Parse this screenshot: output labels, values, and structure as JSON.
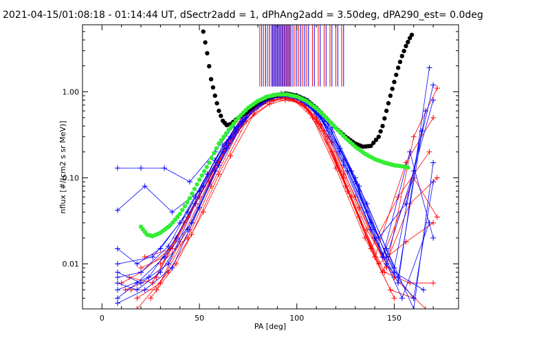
{
  "chart_data": {
    "type": "line",
    "title": "2021-04-15/01:08:18 - 01:14:44 UT, dSectr2add = 1, dPhAng2add = 3.50deg, dPA290_est=    0.0deg",
    "xlabel": "PA [deg]",
    "ylabel": "nflux [#/(cm2 s sr MeV)]",
    "xlim": [
      -10,
      183
    ],
    "ylim": [
      0.003,
      6
    ],
    "yscale": "log",
    "x_ticks": [
      0,
      50,
      100,
      150
    ],
    "x_tick_labels": [
      "0",
      "50",
      "100",
      "150"
    ],
    "y_ticks": [
      0.01,
      0.1,
      1.0
    ],
    "y_tick_labels": [
      "0.01",
      "0.10",
      "1.00"
    ],
    "legend": "none",
    "colors": {
      "red": "#ff0000",
      "blue": "#0000ff",
      "black": "#000000",
      "green": "#33ee33"
    },
    "series": [
      {
        "color": "black",
        "marker": "dot",
        "x": [
          52,
          54,
          56,
          58,
          60,
          62,
          64,
          66,
          70,
          75,
          80,
          85,
          90,
          95,
          100,
          105,
          110,
          115,
          120,
          125,
          130,
          134,
          138,
          142,
          144,
          146,
          148,
          150,
          152,
          154,
          156,
          158,
          160
        ],
        "y": [
          5.0,
          2.8,
          1.4,
          0.9,
          0.6,
          0.46,
          0.41,
          0.42,
          0.5,
          0.6,
          0.75,
          0.86,
          0.92,
          0.95,
          0.9,
          0.8,
          0.65,
          0.5,
          0.38,
          0.3,
          0.25,
          0.23,
          0.235,
          0.3,
          0.4,
          0.6,
          0.9,
          1.3,
          1.9,
          2.6,
          3.4,
          4.2,
          5.0
        ]
      },
      {
        "color": "green",
        "marker": "dot",
        "x": [
          20,
          23,
          26,
          30,
          35,
          40,
          45,
          50,
          55,
          60,
          65,
          70,
          75,
          80,
          85,
          90,
          95,
          100,
          105,
          110,
          115,
          120,
          125,
          130,
          135,
          140,
          145,
          150,
          155,
          158
        ],
        "y": [
          0.027,
          0.022,
          0.021,
          0.023,
          0.028,
          0.038,
          0.058,
          0.095,
          0.15,
          0.25,
          0.36,
          0.5,
          0.65,
          0.78,
          0.88,
          0.93,
          0.93,
          0.88,
          0.78,
          0.64,
          0.5,
          0.38,
          0.29,
          0.23,
          0.19,
          0.165,
          0.15,
          0.14,
          0.135,
          0.13
        ]
      }
    ],
    "red_curves": [
      {
        "x": [
          18,
          30,
          45,
          60,
          75,
          85,
          92,
          100,
          110,
          125,
          140,
          150
        ],
        "y": [
          0.004,
          0.006,
          0.025,
          0.15,
          0.55,
          0.85,
          0.95,
          0.85,
          0.45,
          0.08,
          0.012,
          0.004
        ]
      },
      {
        "x": [
          15,
          28,
          40,
          55,
          70,
          82,
          90,
          98,
          108,
          120,
          135,
          148,
          160
        ],
        "y": [
          0.005,
          0.005,
          0.018,
          0.09,
          0.4,
          0.75,
          0.9,
          0.82,
          0.5,
          0.13,
          0.02,
          0.005,
          0.004
        ]
      },
      {
        "x": [
          10,
          20,
          35,
          50,
          65,
          80,
          88,
          96,
          106,
          118,
          132,
          145,
          158,
          170
        ],
        "y": [
          0.006,
          0.008,
          0.015,
          0.06,
          0.25,
          0.7,
          0.85,
          0.88,
          0.6,
          0.2,
          0.035,
          0.008,
          0.006,
          0.006
        ]
      },
      {
        "x": [
          20,
          32,
          48,
          62,
          76,
          86,
          94,
          102,
          112,
          126,
          142,
          156,
          170
        ],
        "y": [
          0.009,
          0.012,
          0.05,
          0.2,
          0.6,
          0.8,
          0.85,
          0.75,
          0.4,
          0.07,
          0.01,
          0.018,
          0.03
        ]
      },
      {
        "x": [
          25,
          38,
          52,
          66,
          78,
          88,
          96,
          104,
          114,
          128,
          144,
          158,
          172
        ],
        "y": [
          0.004,
          0.01,
          0.04,
          0.18,
          0.55,
          0.78,
          0.82,
          0.7,
          0.35,
          0.06,
          0.008,
          0.05,
          0.1
        ]
      },
      {
        "x": [
          14,
          26,
          42,
          58,
          72,
          84,
          92,
          100,
          110,
          122,
          138,
          152,
          168
        ],
        "y": [
          0.007,
          0.006,
          0.03,
          0.13,
          0.5,
          0.82,
          0.92,
          0.86,
          0.5,
          0.12,
          0.015,
          0.06,
          0.2
        ]
      },
      {
        "x": [
          22,
          36,
          50,
          64,
          78,
          90,
          98,
          106,
          118,
          132,
          146,
          160,
          172
        ],
        "y": [
          0.012,
          0.015,
          0.06,
          0.26,
          0.62,
          0.88,
          0.9,
          0.72,
          0.26,
          0.045,
          0.009,
          0.3,
          1.1
        ]
      },
      {
        "x": [
          18,
          34,
          46,
          60,
          74,
          86,
          94,
          102,
          112,
          124,
          136,
          150,
          166
        ],
        "y": [
          0.003,
          0.008,
          0.022,
          0.11,
          0.45,
          0.72,
          0.8,
          0.74,
          0.42,
          0.11,
          0.025,
          0.007,
          0.003
        ]
      },
      {
        "x": [
          30,
          44,
          56,
          70,
          82,
          92,
          100,
          110,
          124,
          140,
          156,
          170
        ],
        "y": [
          0.01,
          0.02,
          0.08,
          0.35,
          0.7,
          0.85,
          0.8,
          0.5,
          0.1,
          0.012,
          0.15,
          0.5
        ]
      },
      {
        "x": [
          12,
          28,
          44,
          58,
          72,
          84,
          94,
          104,
          116,
          130,
          144,
          160,
          172
        ],
        "y": [
          0.005,
          0.007,
          0.035,
          0.16,
          0.52,
          0.77,
          0.84,
          0.68,
          0.3,
          0.06,
          0.012,
          0.1,
          0.035
        ]
      }
    ],
    "blue_curves": [
      {
        "x": [
          8,
          20,
          32,
          45,
          58,
          72,
          84,
          92,
          100,
          110,
          122,
          136,
          150,
          165
        ],
        "y": [
          0.13,
          0.13,
          0.13,
          0.09,
          0.2,
          0.55,
          0.85,
          0.95,
          0.9,
          0.6,
          0.2,
          0.04,
          0.008,
          0.005
        ]
      },
      {
        "x": [
          8,
          22,
          36,
          50,
          64,
          76,
          86,
          94,
          104,
          116,
          130,
          146,
          160,
          170
        ],
        "y": [
          0.042,
          0.08,
          0.04,
          0.07,
          0.25,
          0.6,
          0.85,
          0.92,
          0.82,
          0.42,
          0.1,
          0.015,
          0.003,
          0.15
        ]
      },
      {
        "x": [
          8,
          18,
          30,
          44,
          58,
          72,
          84,
          92,
          100,
          110,
          124,
          138,
          152,
          168
        ],
        "y": [
          0.015,
          0.01,
          0.015,
          0.04,
          0.16,
          0.5,
          0.8,
          0.9,
          0.85,
          0.55,
          0.14,
          0.025,
          0.006,
          1.9
        ]
      },
      {
        "x": [
          8,
          20,
          34,
          48,
          62,
          76,
          88,
          96,
          106,
          118,
          132,
          146,
          160,
          170
        ],
        "y": [
          0.008,
          0.006,
          0.01,
          0.05,
          0.2,
          0.62,
          0.9,
          0.92,
          0.78,
          0.38,
          0.08,
          0.012,
          0.12,
          0.8
        ]
      },
      {
        "x": [
          8,
          24,
          38,
          52,
          66,
          78,
          88,
          96,
          104,
          114,
          128,
          142,
          156,
          170
        ],
        "y": [
          0.005,
          0.007,
          0.02,
          0.08,
          0.3,
          0.68,
          0.88,
          0.9,
          0.76,
          0.45,
          0.12,
          0.02,
          0.05,
          1.2
        ]
      },
      {
        "x": [
          8,
          18,
          32,
          46,
          60,
          74,
          86,
          94,
          102,
          112,
          126,
          140,
          154,
          168
        ],
        "y": [
          0.004,
          0.006,
          0.012,
          0.03,
          0.14,
          0.5,
          0.82,
          0.95,
          0.86,
          0.5,
          0.12,
          0.02,
          0.004,
          0.03
        ]
      },
      {
        "x": [
          8,
          22,
          36,
          50,
          64,
          78,
          88,
          96,
          104,
          116,
          130,
          144,
          158,
          170
        ],
        "y": [
          0.0035,
          0.005,
          0.009,
          0.045,
          0.22,
          0.65,
          0.86,
          0.9,
          0.8,
          0.42,
          0.09,
          0.012,
          0.2,
          0.02
        ]
      },
      {
        "x": [
          8,
          20,
          34,
          48,
          62,
          76,
          86,
          94,
          102,
          112,
          124,
          138,
          152,
          166
        ],
        "y": [
          0.007,
          0.008,
          0.016,
          0.06,
          0.24,
          0.6,
          0.82,
          0.88,
          0.8,
          0.52,
          0.16,
          0.03,
          0.007,
          0.6
        ]
      },
      {
        "x": [
          8,
          26,
          40,
          54,
          68,
          80,
          90,
          98,
          106,
          118,
          132,
          146,
          160,
          170
        ],
        "y": [
          0.01,
          0.012,
          0.03,
          0.11,
          0.38,
          0.72,
          0.9,
          0.88,
          0.72,
          0.34,
          0.07,
          0.01,
          0.004,
          0.09
        ]
      },
      {
        "x": [
          8,
          18,
          30,
          44,
          58,
          72,
          84,
          92,
          100,
          110,
          122,
          136,
          150,
          164
        ],
        "y": [
          0.006,
          0.005,
          0.008,
          0.025,
          0.12,
          0.45,
          0.78,
          0.92,
          0.9,
          0.62,
          0.22,
          0.05,
          0.009,
          0.35
        ]
      }
    ],
    "top_rug": {
      "red_x": [
        81,
        83,
        85,
        87,
        88,
        89,
        90,
        91,
        92,
        93,
        94,
        95,
        96,
        97,
        99,
        101,
        103,
        105,
        108,
        111,
        114,
        117,
        120,
        123
      ],
      "blue_x": [
        82,
        84,
        86,
        87.5,
        88.5,
        89.5,
        90.5,
        91.5,
        92.5,
        93.5,
        94.5,
        95.5,
        96.5,
        98,
        100,
        102,
        104,
        106,
        109,
        112,
        115,
        118,
        121,
        124
      ],
      "y_from": 1.15
    }
  }
}
